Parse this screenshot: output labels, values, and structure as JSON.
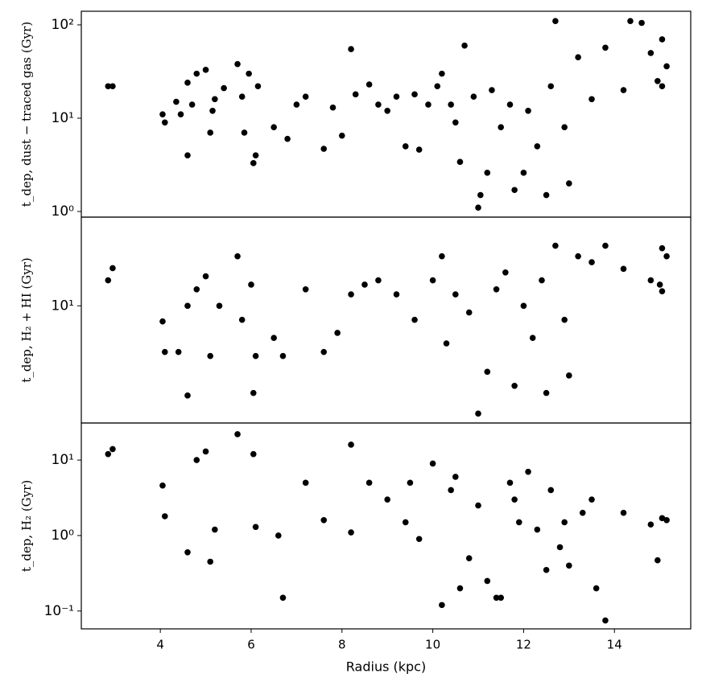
{
  "chart_data": [
    {
      "type": "scatter",
      "ylabel": "t_dep, dust − traced gas (Gyr)",
      "log_y": true,
      "color": "#000000",
      "xlim": [
        2.26,
        15.68
      ],
      "ylim": [
        0.87,
        140
      ],
      "yticks": [
        {
          "value": 1,
          "label": "10⁰"
        },
        {
          "value": 10,
          "label": "10¹"
        },
        {
          "value": 100,
          "label": "10²"
        }
      ],
      "x": [
        2.85,
        2.95,
        4.05,
        4.1,
        4.35,
        4.45,
        4.6,
        4.6,
        4.7,
        4.8,
        5.0,
        5.1,
        5.15,
        5.2,
        5.4,
        5.7,
        5.8,
        5.85,
        5.95,
        6.05,
        6.1,
        6.15,
        6.5,
        6.8,
        7.0,
        7.2,
        7.6,
        7.8,
        8.0,
        8.2,
        8.3,
        8.6,
        8.8,
        9.0,
        9.2,
        9.4,
        9.6,
        9.7,
        9.9,
        10.1,
        10.2,
        10.4,
        10.5,
        10.6,
        10.7,
        10.9,
        11.0,
        11.05,
        11.2,
        11.3,
        11.5,
        11.7,
        11.8,
        12.0,
        12.1,
        12.3,
        12.5,
        12.6,
        12.7,
        12.9,
        13.0,
        13.2,
        13.5,
        13.8,
        14.2,
        14.35,
        14.6,
        14.8,
        14.95,
        15.05,
        15.05,
        15.15
      ],
      "values": [
        22,
        22,
        11,
        9,
        15,
        11,
        4,
        24,
        14,
        30,
        33,
        7,
        12,
        16,
        21,
        38,
        17,
        7,
        30,
        3.3,
        4,
        22,
        8,
        6,
        14,
        17,
        4.7,
        13,
        6.5,
        55,
        18,
        23,
        14,
        12,
        17,
        5,
        18,
        4.6,
        14,
        22,
        30,
        14,
        9,
        3.4,
        60,
        17,
        1.1,
        1.5,
        2.6,
        20,
        8,
        14,
        1.7,
        2.6,
        12,
        5,
        1.5,
        22,
        110,
        8,
        2.0,
        45,
        16,
        57,
        20,
        110,
        105,
        50,
        25,
        22,
        70,
        36
      ]
    },
    {
      "type": "scatter",
      "ylabel": "t_dep, H₂ + HI (Gyr)",
      "log_y": true,
      "color": "#000000",
      "xlim": [
        2.26,
        15.68
      ],
      "ylim": [
        1.55,
        41
      ],
      "yticks": [
        {
          "value": 10,
          "label": "10¹"
        }
      ],
      "x": [
        2.85,
        2.95,
        4.05,
        4.1,
        4.4,
        4.6,
        4.6,
        4.8,
        5.0,
        5.1,
        5.3,
        5.7,
        5.8,
        6.0,
        6.05,
        6.1,
        6.5,
        6.7,
        7.2,
        7.6,
        7.9,
        8.2,
        8.5,
        8.8,
        9.2,
        9.6,
        10.0,
        10.2,
        10.3,
        10.5,
        10.8,
        11.0,
        11.2,
        11.4,
        11.6,
        11.8,
        12.0,
        12.2,
        12.4,
        12.5,
        12.7,
        12.9,
        13.0,
        13.2,
        13.5,
        13.8,
        14.2,
        14.8,
        15.0,
        15.05,
        15.05,
        15.15
      ],
      "values": [
        15,
        18.2,
        7.8,
        4.8,
        4.8,
        2.4,
        10,
        13,
        16,
        4.5,
        10,
        22,
        8,
        14,
        2.5,
        4.5,
        6,
        4.5,
        13,
        4.8,
        6.5,
        12,
        14,
        15,
        12,
        8,
        15,
        22,
        5.5,
        12,
        9,
        1.8,
        3.5,
        13,
        17,
        2.8,
        10,
        6,
        15,
        2.5,
        26,
        8,
        3.3,
        22,
        20,
        26,
        18,
        15,
        14,
        12.6,
        25,
        22
      ]
    },
    {
      "type": "scatter",
      "ylabel": "t_dep, H₂ (Gyr)",
      "xlabel": "Radius (kpc)",
      "log_y": true,
      "color": "#000000",
      "xlim": [
        2.26,
        15.68
      ],
      "ylim": [
        0.058,
        31
      ],
      "xticks": [
        4,
        6,
        8,
        10,
        12,
        14
      ],
      "yticks": [
        {
          "value": 0.1,
          "label": "10⁻¹"
        },
        {
          "value": 1,
          "label": "10⁰"
        },
        {
          "value": 10,
          "label": "10¹"
        }
      ],
      "x": [
        2.85,
        2.95,
        4.05,
        4.1,
        4.6,
        4.8,
        5.0,
        5.1,
        5.2,
        5.7,
        6.05,
        6.1,
        6.6,
        6.7,
        7.2,
        7.6,
        8.2,
        8.2,
        8.6,
        9.0,
        9.4,
        9.7,
        10.0,
        10.2,
        10.4,
        10.6,
        10.8,
        11.0,
        11.2,
        11.4,
        11.5,
        11.7,
        11.9,
        12.1,
        12.3,
        12.5,
        12.6,
        12.9,
        13.0,
        13.3,
        13.5,
        13.6,
        13.8,
        14.2,
        14.8,
        14.95,
        15.05,
        15.15,
        10.5,
        11.8,
        9.5,
        12.8
      ],
      "values": [
        12,
        14,
        4.6,
        1.8,
        0.6,
        10,
        13,
        0.45,
        1.2,
        22,
        12,
        1.3,
        1.0,
        0.15,
        5,
        1.6,
        16,
        1.1,
        5,
        3,
        1.5,
        0.9,
        9,
        0.12,
        4,
        0.2,
        0.5,
        2.5,
        0.25,
        0.15,
        0.15,
        5,
        1.5,
        7,
        1.2,
        0.35,
        4,
        1.5,
        0.4,
        2,
        3,
        0.2,
        0.075,
        2,
        1.4,
        0.47,
        1.7,
        1.6,
        6,
        3,
        5,
        0.7
      ]
    }
  ]
}
